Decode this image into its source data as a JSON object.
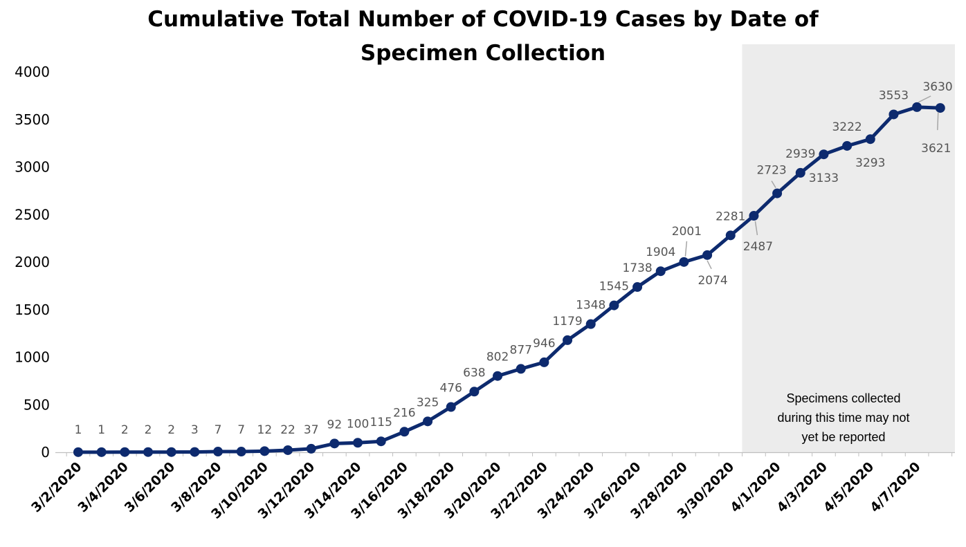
{
  "chart_data": {
    "type": "line",
    "title": "Cumulative Total Number of COVID-19 Cases by Date of Specimen Collection",
    "title_lines": [
      "Cumulative Total Number of COVID-19 Cases by Date of",
      "Specimen Collection"
    ],
    "xlabel": "",
    "ylabel": "",
    "ylim": [
      0,
      4000
    ],
    "yticks": [
      "0",
      "500",
      "1000",
      "1500",
      "2000",
      "2500",
      "3000",
      "3500",
      "4000"
    ],
    "ytick_values": [
      0,
      500,
      1000,
      1500,
      2000,
      2500,
      3000,
      3500,
      4000
    ],
    "x": [
      "3/2/2020",
      "3/3/2020",
      "3/4/2020",
      "3/5/2020",
      "3/6/2020",
      "3/7/2020",
      "3/8/2020",
      "3/9/2020",
      "3/10/2020",
      "3/11/2020",
      "3/12/2020",
      "3/13/2020",
      "3/14/2020",
      "3/15/2020",
      "3/16/2020",
      "3/17/2020",
      "3/18/2020",
      "3/19/2020",
      "3/20/2020",
      "3/21/2020",
      "3/22/2020",
      "3/23/2020",
      "3/24/2020",
      "3/25/2020",
      "3/26/2020",
      "3/27/2020",
      "3/28/2020",
      "3/29/2020",
      "3/30/2020",
      "3/31/2020",
      "4/1/2020",
      "4/2/2020",
      "4/3/2020",
      "4/4/2020",
      "4/5/2020",
      "4/6/2020",
      "4/7/2020",
      "4/8/2020"
    ],
    "xtick_labels": [
      "3/2/2020",
      "3/4/2020",
      "3/6/2020",
      "3/8/2020",
      "3/10/2020",
      "3/12/2020",
      "3/14/2020",
      "3/16/2020",
      "3/18/2020",
      "3/20/2020",
      "3/22/2020",
      "3/24/2020",
      "3/26/2020",
      "3/28/2020",
      "3/30/2020",
      "4/1/2020",
      "4/3/2020",
      "4/5/2020",
      "4/7/2020"
    ],
    "series": [
      {
        "name": "Cumulative cases",
        "color": "#0d2a6e",
        "values": [
          1,
          1,
          2,
          2,
          2,
          3,
          7,
          7,
          12,
          22,
          37,
          92,
          100,
          115,
          216,
          325,
          476,
          638,
          802,
          877,
          946,
          1179,
          1348,
          1545,
          1738,
          1904,
          2001,
          2074,
          2281,
          2487,
          2723,
          2939,
          3133,
          3222,
          3293,
          3553,
          3630,
          3621
        ]
      }
    ],
    "labels": [
      "1",
      "1",
      "2",
      "2",
      "2",
      "3",
      "7",
      "7",
      "12",
      "22",
      "37",
      "92",
      "100",
      "115",
      "216",
      "325",
      "476",
      "638",
      "802",
      "877",
      "946",
      "1179",
      "1348",
      "1545",
      "1738",
      "1904",
      "2001",
      "2074",
      "2281",
      "2487",
      "2723",
      "2939",
      "3133",
      "3222",
      "3293",
      "3553",
      "3630",
      "3621"
    ],
    "shaded_region": {
      "from": "3/31/2020",
      "to": "4/8/2020",
      "color": "#ececec",
      "note_lines": [
        "Specimens collected",
        "during this time may not",
        "yet be reported"
      ]
    },
    "grid": false,
    "legend": "none"
  }
}
